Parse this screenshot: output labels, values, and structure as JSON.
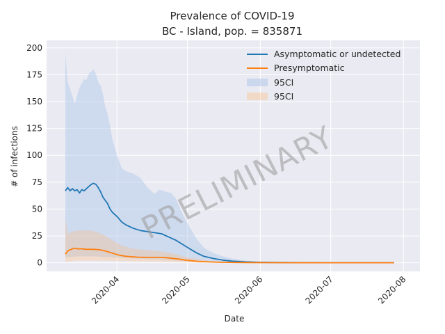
{
  "chart_data": {
    "type": "line",
    "title": "Prevalence of COVID-19",
    "subtitle": "BC - Island, pop. = 835871",
    "xlabel": "Date",
    "ylabel": "# of infections",
    "watermark": "PRELIMINARY",
    "xlim": [
      "2020-03-02",
      "2020-08-08"
    ],
    "ylim": [
      -8,
      207
    ],
    "x_ticks": [
      "2020-04",
      "2020-05",
      "2020-06",
      "2020-07",
      "2020-08"
    ],
    "y_ticks": [
      0,
      25,
      50,
      75,
      100,
      125,
      150,
      175,
      200
    ],
    "grid": true,
    "legend_position": "top-right",
    "colors": {
      "background": "#eaeaf2",
      "grid": "#ffffff",
      "asymptomatic": "#1f77b4",
      "presymptomatic": "#ff7f0e"
    },
    "series": [
      {
        "name": "Asymptomatic or undetected",
        "color": "#1f77b4",
        "points": [
          [
            "2020-03-10",
            67
          ],
          [
            "2020-03-11",
            70
          ],
          [
            "2020-03-12",
            67
          ],
          [
            "2020-03-13",
            69
          ],
          [
            "2020-03-14",
            67
          ],
          [
            "2020-03-15",
            68
          ],
          [
            "2020-03-16",
            65
          ],
          [
            "2020-03-17",
            68
          ],
          [
            "2020-03-18",
            67
          ],
          [
            "2020-03-19",
            69
          ],
          [
            "2020-03-20",
            71
          ],
          [
            "2020-03-21",
            73
          ],
          [
            "2020-03-22",
            74
          ],
          [
            "2020-03-23",
            73
          ],
          [
            "2020-03-24",
            70
          ],
          [
            "2020-03-25",
            66
          ],
          [
            "2020-03-26",
            61
          ],
          [
            "2020-03-27",
            58
          ],
          [
            "2020-03-28",
            55
          ],
          [
            "2020-03-29",
            50
          ],
          [
            "2020-03-30",
            47
          ],
          [
            "2020-04-01",
            43
          ],
          [
            "2020-04-03",
            38
          ],
          [
            "2020-04-05",
            35
          ],
          [
            "2020-04-08",
            32
          ],
          [
            "2020-04-11",
            30
          ],
          [
            "2020-04-14",
            29
          ],
          [
            "2020-04-17",
            28
          ],
          [
            "2020-04-20",
            27
          ],
          [
            "2020-04-23",
            24
          ],
          [
            "2020-04-26",
            21
          ],
          [
            "2020-04-29",
            17
          ],
          [
            "2020-05-02",
            13
          ],
          [
            "2020-05-05",
            9
          ],
          [
            "2020-05-08",
            6
          ],
          [
            "2020-05-12",
            4
          ],
          [
            "2020-05-16",
            2.5
          ],
          [
            "2020-05-20",
            1.5
          ],
          [
            "2020-05-26",
            0.8
          ],
          [
            "2020-06-01",
            0.4
          ],
          [
            "2020-06-10",
            0.2
          ],
          [
            "2020-06-20",
            0.1
          ],
          [
            "2020-07-01",
            0.05
          ],
          [
            "2020-07-15",
            0.02
          ],
          [
            "2020-07-28",
            0.01
          ]
        ],
        "ci_label": "95CI",
        "ci_upper": [
          [
            "2020-03-10",
            195
          ],
          [
            "2020-03-11",
            168
          ],
          [
            "2020-03-13",
            155
          ],
          [
            "2020-03-14",
            148
          ],
          [
            "2020-03-16",
            163
          ],
          [
            "2020-03-18",
            171
          ],
          [
            "2020-03-19",
            170
          ],
          [
            "2020-03-20",
            176
          ],
          [
            "2020-03-22",
            180
          ],
          [
            "2020-03-23",
            176
          ],
          [
            "2020-03-24",
            168
          ],
          [
            "2020-03-25",
            165
          ],
          [
            "2020-03-26",
            157
          ],
          [
            "2020-03-27",
            145
          ],
          [
            "2020-03-28",
            138
          ],
          [
            "2020-03-29",
            128
          ],
          [
            "2020-03-30",
            115
          ],
          [
            "2020-04-01",
            100
          ],
          [
            "2020-04-03",
            88
          ],
          [
            "2020-04-05",
            85
          ],
          [
            "2020-04-08",
            83
          ],
          [
            "2020-04-11",
            79
          ],
          [
            "2020-04-14",
            70
          ],
          [
            "2020-04-17",
            64
          ],
          [
            "2020-04-19",
            68
          ],
          [
            "2020-04-22",
            66
          ],
          [
            "2020-04-24",
            65
          ],
          [
            "2020-04-26",
            60
          ],
          [
            "2020-04-29",
            45
          ],
          [
            "2020-05-02",
            33
          ],
          [
            "2020-05-05",
            22
          ],
          [
            "2020-05-08",
            14
          ],
          [
            "2020-05-12",
            9
          ],
          [
            "2020-05-16",
            6
          ],
          [
            "2020-05-20",
            4
          ],
          [
            "2020-05-26",
            2
          ],
          [
            "2020-06-01",
            1
          ],
          [
            "2020-06-10",
            0.5
          ],
          [
            "2020-06-20",
            0.2
          ],
          [
            "2020-07-01",
            0.1
          ],
          [
            "2020-07-28",
            0.05
          ]
        ],
        "ci_lower": [
          [
            "2020-03-10",
            5
          ],
          [
            "2020-03-15",
            6
          ],
          [
            "2020-03-22",
            6
          ],
          [
            "2020-03-30",
            5
          ],
          [
            "2020-04-08",
            4
          ],
          [
            "2020-04-20",
            3
          ],
          [
            "2020-05-01",
            1.5
          ],
          [
            "2020-05-10",
            0.5
          ],
          [
            "2020-05-20",
            0.2
          ],
          [
            "2020-06-01",
            0
          ],
          [
            "2020-07-28",
            0
          ]
        ]
      },
      {
        "name": "Presymptomatic",
        "color": "#ff7f0e",
        "points": [
          [
            "2020-03-10",
            8
          ],
          [
            "2020-03-11",
            11
          ],
          [
            "2020-03-12",
            12
          ],
          [
            "2020-03-13",
            13
          ],
          [
            "2020-03-14",
            13.5
          ],
          [
            "2020-03-15",
            13
          ],
          [
            "2020-03-17",
            13
          ],
          [
            "2020-03-19",
            12.5
          ],
          [
            "2020-03-22",
            12.5
          ],
          [
            "2020-03-25",
            12
          ],
          [
            "2020-03-27",
            11
          ],
          [
            "2020-03-30",
            9
          ],
          [
            "2020-04-02",
            7
          ],
          [
            "2020-04-05",
            6
          ],
          [
            "2020-04-10",
            5.2
          ],
          [
            "2020-04-15",
            5
          ],
          [
            "2020-04-20",
            5
          ],
          [
            "2020-04-23",
            4.5
          ],
          [
            "2020-04-27",
            3.5
          ],
          [
            "2020-05-01",
            2.2
          ],
          [
            "2020-05-05",
            1.4
          ],
          [
            "2020-05-10",
            0.8
          ],
          [
            "2020-05-16",
            0.4
          ],
          [
            "2020-05-25",
            0.2
          ],
          [
            "2020-06-05",
            0.1
          ],
          [
            "2020-06-20",
            0.05
          ],
          [
            "2020-07-10",
            0.02
          ],
          [
            "2020-07-28",
            0.01
          ]
        ],
        "ci_label": "95CI",
        "ci_upper": [
          [
            "2020-03-10",
            40
          ],
          [
            "2020-03-11",
            27
          ],
          [
            "2020-03-13",
            29
          ],
          [
            "2020-03-15",
            30
          ],
          [
            "2020-03-18",
            30
          ],
          [
            "2020-03-21",
            30
          ],
          [
            "2020-03-24",
            28
          ],
          [
            "2020-03-27",
            25
          ],
          [
            "2020-03-30",
            21
          ],
          [
            "2020-04-03",
            16
          ],
          [
            "2020-04-08",
            13
          ],
          [
            "2020-04-13",
            12
          ],
          [
            "2020-04-18",
            11
          ],
          [
            "2020-04-22",
            10
          ],
          [
            "2020-04-26",
            8
          ],
          [
            "2020-05-01",
            5
          ],
          [
            "2020-05-05",
            3.5
          ],
          [
            "2020-05-10",
            2
          ],
          [
            "2020-05-16",
            1
          ],
          [
            "2020-05-25",
            0.5
          ],
          [
            "2020-06-05",
            0.2
          ],
          [
            "2020-07-28",
            0.02
          ]
        ],
        "ci_lower": [
          [
            "2020-03-10",
            1
          ],
          [
            "2020-03-15",
            2
          ],
          [
            "2020-03-25",
            2
          ],
          [
            "2020-04-05",
            1.5
          ],
          [
            "2020-04-20",
            1
          ],
          [
            "2020-05-01",
            0.5
          ],
          [
            "2020-05-15",
            0.1
          ],
          [
            "2020-06-01",
            0
          ],
          [
            "2020-07-28",
            0
          ]
        ]
      }
    ]
  }
}
